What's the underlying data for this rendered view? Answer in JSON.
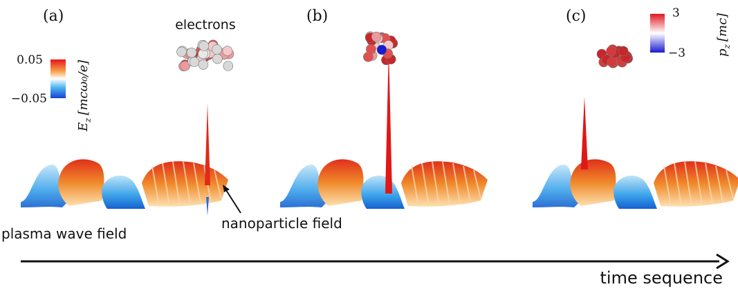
{
  "panels": [
    {
      "label": "(a)"
    },
    {
      "label": "(b)"
    },
    {
      "label": "(c)"
    }
  ],
  "annotations": {
    "electrons": "electrons",
    "plasma_wave": "plasma wave field",
    "nanoparticle": "nanoparticle field",
    "time": "time sequence"
  },
  "colorbars": [
    {
      "symbol": "E",
      "subscript": "z",
      "unit": "[mcω₀/e]",
      "max": "0.05",
      "min": "−0.05"
    },
    {
      "symbol": "p",
      "subscript": "z",
      "unit": "[mc]",
      "max": "3",
      "min": "−3"
    }
  ]
}
